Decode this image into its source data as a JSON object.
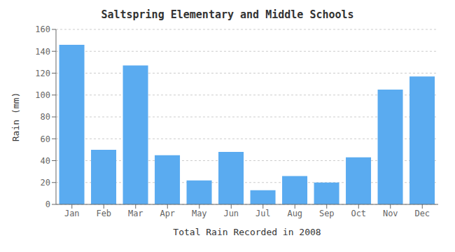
{
  "chart_data": {
    "type": "bar",
    "title": "Saltspring Elementary and Middle Schools",
    "xlabel": "Total Rain Recorded in 2008",
    "ylabel": "Rain (mm)",
    "categories": [
      "Jan",
      "Feb",
      "Mar",
      "Apr",
      "May",
      "Jun",
      "Jul",
      "Aug",
      "Sep",
      "Oct",
      "Nov",
      "Dec"
    ],
    "values": [
      146,
      50,
      127,
      45,
      22,
      48,
      13,
      26,
      20,
      43,
      105,
      117
    ],
    "color": "#5aabf0",
    "ylim": [
      0,
      160
    ],
    "yticks": [
      0,
      20,
      40,
      60,
      80,
      100,
      120,
      140,
      160
    ],
    "grid": true
  }
}
